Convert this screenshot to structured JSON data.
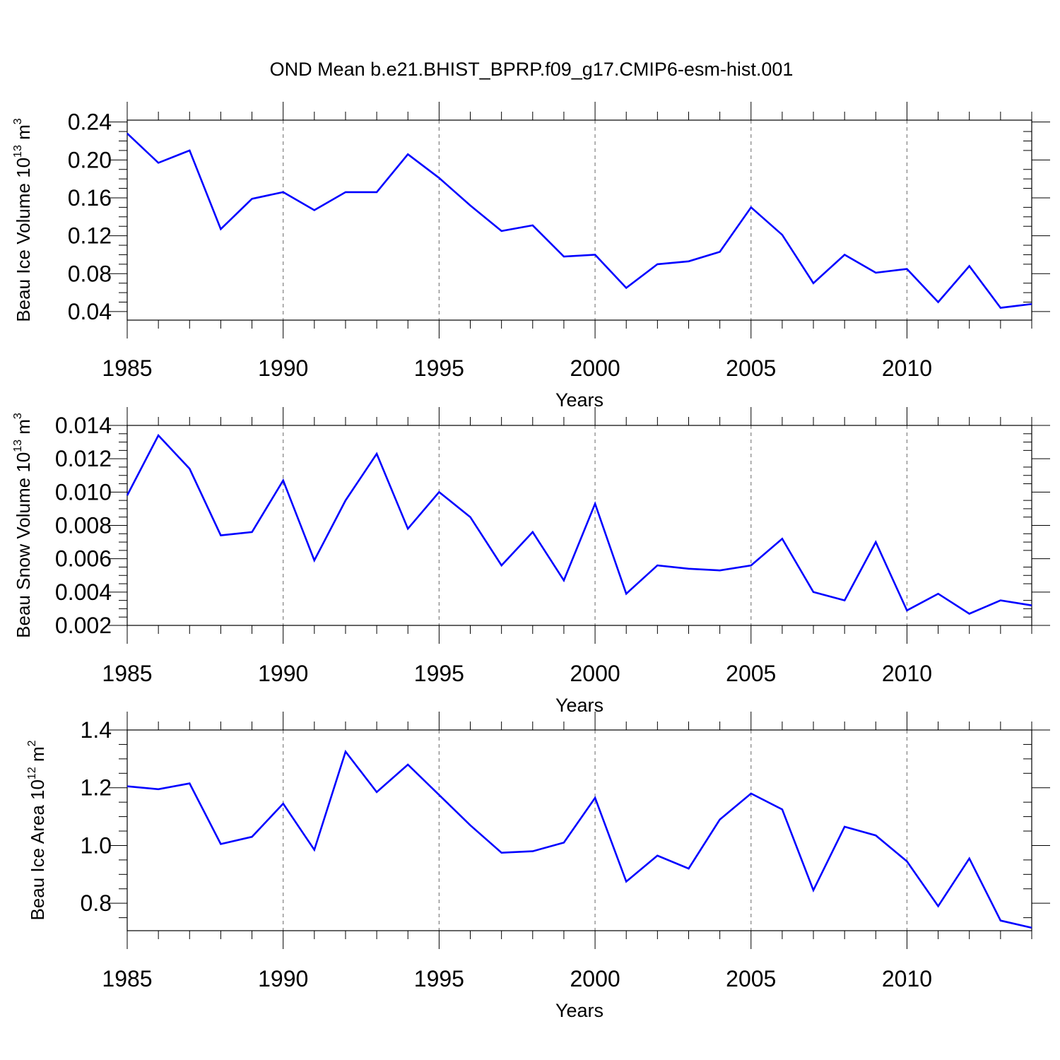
{
  "title": "OND Mean b.e21.BHIST_BPRP.f09_g17.CMIP6-esm-hist.001",
  "colors": {
    "line": "#0000ff",
    "axis": "#000000",
    "grid": "#7f7f7f"
  },
  "chart_data": [
    {
      "type": "line",
      "name": "ice-volume",
      "ylabel": {
        "text": "Beau Ice Volume 10",
        "exp": "13",
        "unit": " m",
        "unit_exp": "3"
      },
      "xlabel": "Years",
      "xlim": [
        1985,
        2014
      ],
      "ylim": [
        0.031,
        0.242
      ],
      "yticks": [
        "0.04",
        "0.08",
        "0.12",
        "0.16",
        "0.20",
        "0.24"
      ],
      "xticks": [
        "1985",
        "1990",
        "1995",
        "2000",
        "2005",
        "2010"
      ],
      "x": [
        1985,
        1986,
        1987,
        1988,
        1989,
        1990,
        1991,
        1992,
        1993,
        1994,
        1995,
        1996,
        1997,
        1998,
        1999,
        2000,
        2001,
        2002,
        2003,
        2004,
        2005,
        2006,
        2007,
        2008,
        2009,
        2010,
        2011,
        2012,
        2013,
        2014
      ],
      "values": [
        0.228,
        0.197,
        0.21,
        0.127,
        0.159,
        0.166,
        0.147,
        0.166,
        0.166,
        0.206,
        0.181,
        0.152,
        0.125,
        0.131,
        0.098,
        0.1,
        0.065,
        0.09,
        0.093,
        0.103,
        0.15,
        0.121,
        0.07,
        0.1,
        0.081,
        0.085,
        0.05,
        0.088,
        0.044,
        0.048
      ]
    },
    {
      "type": "line",
      "name": "snow-volume",
      "ylabel": {
        "text": "Beau Snow Volume 10",
        "exp": "13",
        "unit": " m",
        "unit_exp": "3"
      },
      "xlabel": "Years",
      "xlim": [
        1985,
        2014
      ],
      "ylim": [
        0.002,
        0.014
      ],
      "yticks": [
        "0.002",
        "0.004",
        "0.006",
        "0.008",
        "0.010",
        "0.012",
        "0.014"
      ],
      "xticks": [
        "1985",
        "1990",
        "1995",
        "2000",
        "2005",
        "2010"
      ],
      "x": [
        1985,
        1986,
        1987,
        1988,
        1989,
        1990,
        1991,
        1992,
        1993,
        1994,
        1995,
        1996,
        1997,
        1998,
        1999,
        2000,
        2001,
        2002,
        2003,
        2004,
        2005,
        2006,
        2007,
        2008,
        2009,
        2010,
        2011,
        2012,
        2013,
        2014
      ],
      "values": [
        0.0098,
        0.0134,
        0.0114,
        0.0074,
        0.0076,
        0.0107,
        0.0059,
        0.0095,
        0.0123,
        0.0078,
        0.01,
        0.0085,
        0.0056,
        0.0076,
        0.0047,
        0.0093,
        0.0039,
        0.0056,
        0.0054,
        0.0053,
        0.0056,
        0.0072,
        0.004,
        0.0035,
        0.007,
        0.0029,
        0.0039,
        0.0027,
        0.0035,
        0.0032
      ]
    },
    {
      "type": "line",
      "name": "ice-area",
      "ylabel": {
        "text": "Beau Ice Area 10",
        "exp": "12",
        "unit": " m",
        "unit_exp": "2"
      },
      "xlabel": "Years",
      "xlim": [
        1985,
        2014
      ],
      "ylim": [
        0.705,
        1.4
      ],
      "yticks": [
        "0.8",
        "1.0",
        "1.2",
        "1.4"
      ],
      "xticks": [
        "1985",
        "1990",
        "1995",
        "2000",
        "2005",
        "2010"
      ],
      "x": [
        1985,
        1986,
        1987,
        1988,
        1989,
        1990,
        1991,
        1992,
        1993,
        1994,
        1995,
        1996,
        1997,
        1998,
        1999,
        2000,
        2001,
        2002,
        2003,
        2004,
        2005,
        2006,
        2007,
        2008,
        2009,
        2010,
        2011,
        2012,
        2013,
        2014
      ],
      "values": [
        1.205,
        1.195,
        1.215,
        1.005,
        1.03,
        1.145,
        0.985,
        1.325,
        1.185,
        1.28,
        1.175,
        1.07,
        0.975,
        0.98,
        1.01,
        1.165,
        0.875,
        0.965,
        0.92,
        1.09,
        1.18,
        1.125,
        0.845,
        1.065,
        1.035,
        0.945,
        0.79,
        0.955,
        0.74,
        0.715
      ]
    }
  ]
}
